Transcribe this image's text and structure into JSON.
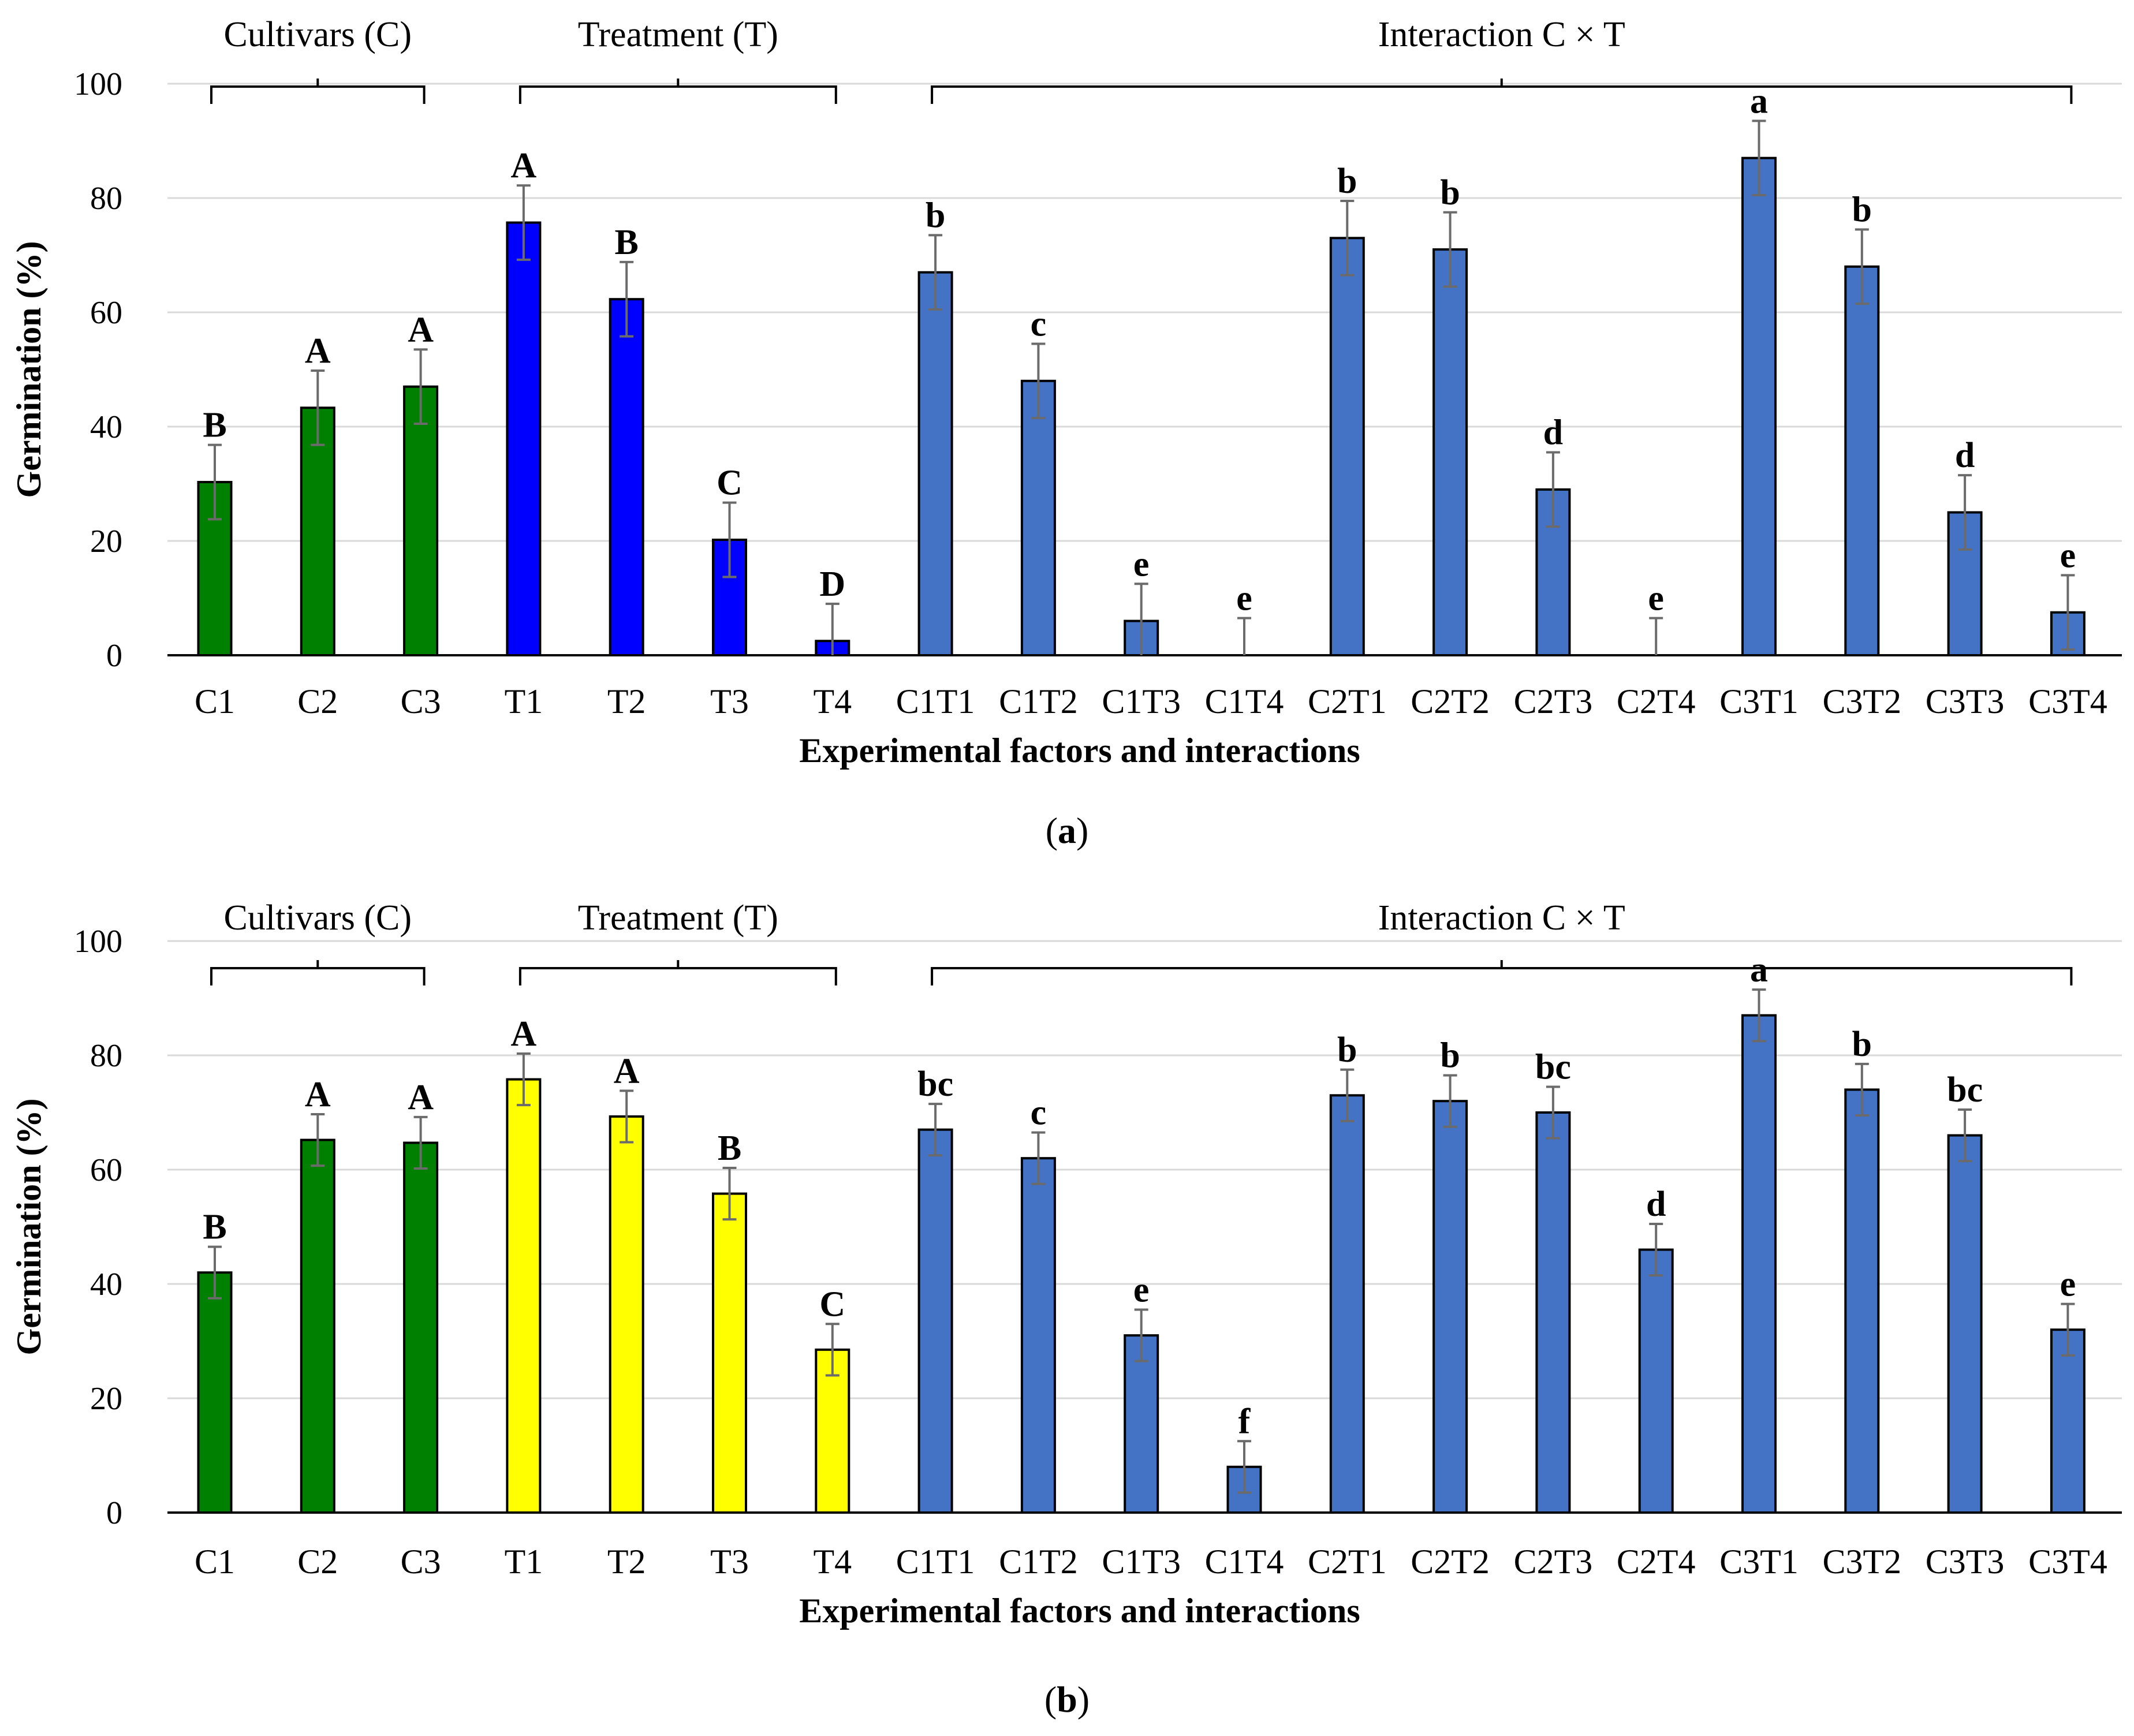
{
  "colors": {
    "cultivars_a": "#008000",
    "treatment_a": "#0000ff",
    "interaction": "#4472c4",
    "cultivars_b": "#008000",
    "treatment_b": "#ffff00",
    "error_bar": "#6b6b6b",
    "grid": "#d9d9d9"
  },
  "chart_data": [
    {
      "type": "bar",
      "panel": "(a)",
      "panel_caption_letter": "a",
      "xlabel": "Experimental factors and interactions",
      "ylabel": "Germination (%)",
      "ylim": [
        0,
        100
      ],
      "yticks": [
        0,
        20,
        40,
        60,
        80,
        100
      ],
      "grid": true,
      "groups": [
        {
          "label": "Cultivars (C)",
          "categories": [
            "C1",
            "C2",
            "C3"
          ]
        },
        {
          "label": "Treatment (T)",
          "categories": [
            "T1",
            "T2",
            "T3",
            "T4"
          ]
        },
        {
          "label": "Interaction C × T",
          "categories": [
            "C1T1",
            "C1T2",
            "C1T3",
            "C1T4",
            "C2T1",
            "C2T2",
            "C2T3",
            "C2T4",
            "C3T1",
            "C3T2",
            "C3T3",
            "C3T4"
          ]
        }
      ],
      "categories": [
        "C1",
        "C2",
        "C3",
        "T1",
        "T2",
        "T3",
        "T4",
        "C1T1",
        "C1T2",
        "C1T3",
        "C1T4",
        "C2T1",
        "C2T2",
        "C2T3",
        "C2T4",
        "C3T1",
        "C3T2",
        "C3T3",
        "C3T4"
      ],
      "values": [
        30.3,
        43.3,
        47.0,
        75.7,
        62.3,
        20.2,
        2.5,
        67.0,
        48.0,
        6.0,
        0,
        73.0,
        71.0,
        29.0,
        0,
        87.0,
        68.0,
        25.0,
        7.5
      ],
      "errors": [
        6.5,
        6.5,
        6.5,
        6.5,
        6.5,
        6.5,
        6.5,
        6.5,
        6.5,
        6.5,
        6.5,
        6.5,
        6.5,
        6.5,
        6.5,
        6.5,
        6.5,
        6.5,
        6.5
      ],
      "significance": [
        "B",
        "A",
        "A",
        "A",
        "B",
        "C",
        "D",
        "b",
        "c",
        "e",
        "e",
        "b",
        "b",
        "d",
        "e",
        "a",
        "b",
        "d",
        "e"
      ],
      "bar_colors": [
        "cultivars_a",
        "cultivars_a",
        "cultivars_a",
        "treatment_a",
        "treatment_a",
        "treatment_a",
        "treatment_a",
        "interaction",
        "interaction",
        "interaction",
        "interaction",
        "interaction",
        "interaction",
        "interaction",
        "interaction",
        "interaction",
        "interaction",
        "interaction",
        "interaction"
      ]
    },
    {
      "type": "bar",
      "panel": "(b)",
      "panel_caption_letter": "b",
      "xlabel": "Experimental factors and interactions",
      "ylabel": "Germination (%)",
      "ylim": [
        0,
        100
      ],
      "yticks": [
        0,
        20,
        40,
        60,
        80,
        100
      ],
      "grid": true,
      "groups": [
        {
          "label": "Cultivars (C)",
          "categories": [
            "C1",
            "C2",
            "C3"
          ]
        },
        {
          "label": "Treatment (T)",
          "categories": [
            "T1",
            "T2",
            "T3",
            "T4"
          ]
        },
        {
          "label": "Interaction C × T",
          "categories": [
            "C1T1",
            "C1T2",
            "C1T3",
            "C1T4",
            "C2T1",
            "C2T2",
            "C2T3",
            "C2T4",
            "C3T1",
            "C3T2",
            "C3T3",
            "C3T4"
          ]
        }
      ],
      "categories": [
        "C1",
        "C2",
        "C3",
        "T1",
        "T2",
        "T3",
        "T4",
        "C1T1",
        "C1T2",
        "C1T3",
        "C1T4",
        "C2T1",
        "C2T2",
        "C2T3",
        "C2T4",
        "C3T1",
        "C3T2",
        "C3T3",
        "C3T4"
      ],
      "values": [
        42.0,
        65.2,
        64.7,
        75.8,
        69.3,
        55.8,
        28.5,
        67.0,
        62.0,
        31.0,
        8.0,
        73.0,
        72.0,
        70.0,
        46.0,
        87.0,
        74.0,
        66.0,
        32.0
      ],
      "errors": [
        4.5,
        4.5,
        4.5,
        4.5,
        4.5,
        4.5,
        4.5,
        4.5,
        4.5,
        4.5,
        4.5,
        4.5,
        4.5,
        4.5,
        4.5,
        4.5,
        4.5,
        4.5,
        4.5
      ],
      "significance": [
        "B",
        "A",
        "A",
        "A",
        "A",
        "B",
        "C",
        "bc",
        "c",
        "e",
        "f",
        "b",
        "b",
        "bc",
        "d",
        "a",
        "b",
        "bc",
        "e"
      ],
      "bar_colors": [
        "cultivars_b",
        "cultivars_b",
        "cultivars_b",
        "treatment_b",
        "treatment_b",
        "treatment_b",
        "treatment_b",
        "interaction",
        "interaction",
        "interaction",
        "interaction",
        "interaction",
        "interaction",
        "interaction",
        "interaction",
        "interaction",
        "interaction",
        "interaction",
        "interaction"
      ]
    }
  ]
}
